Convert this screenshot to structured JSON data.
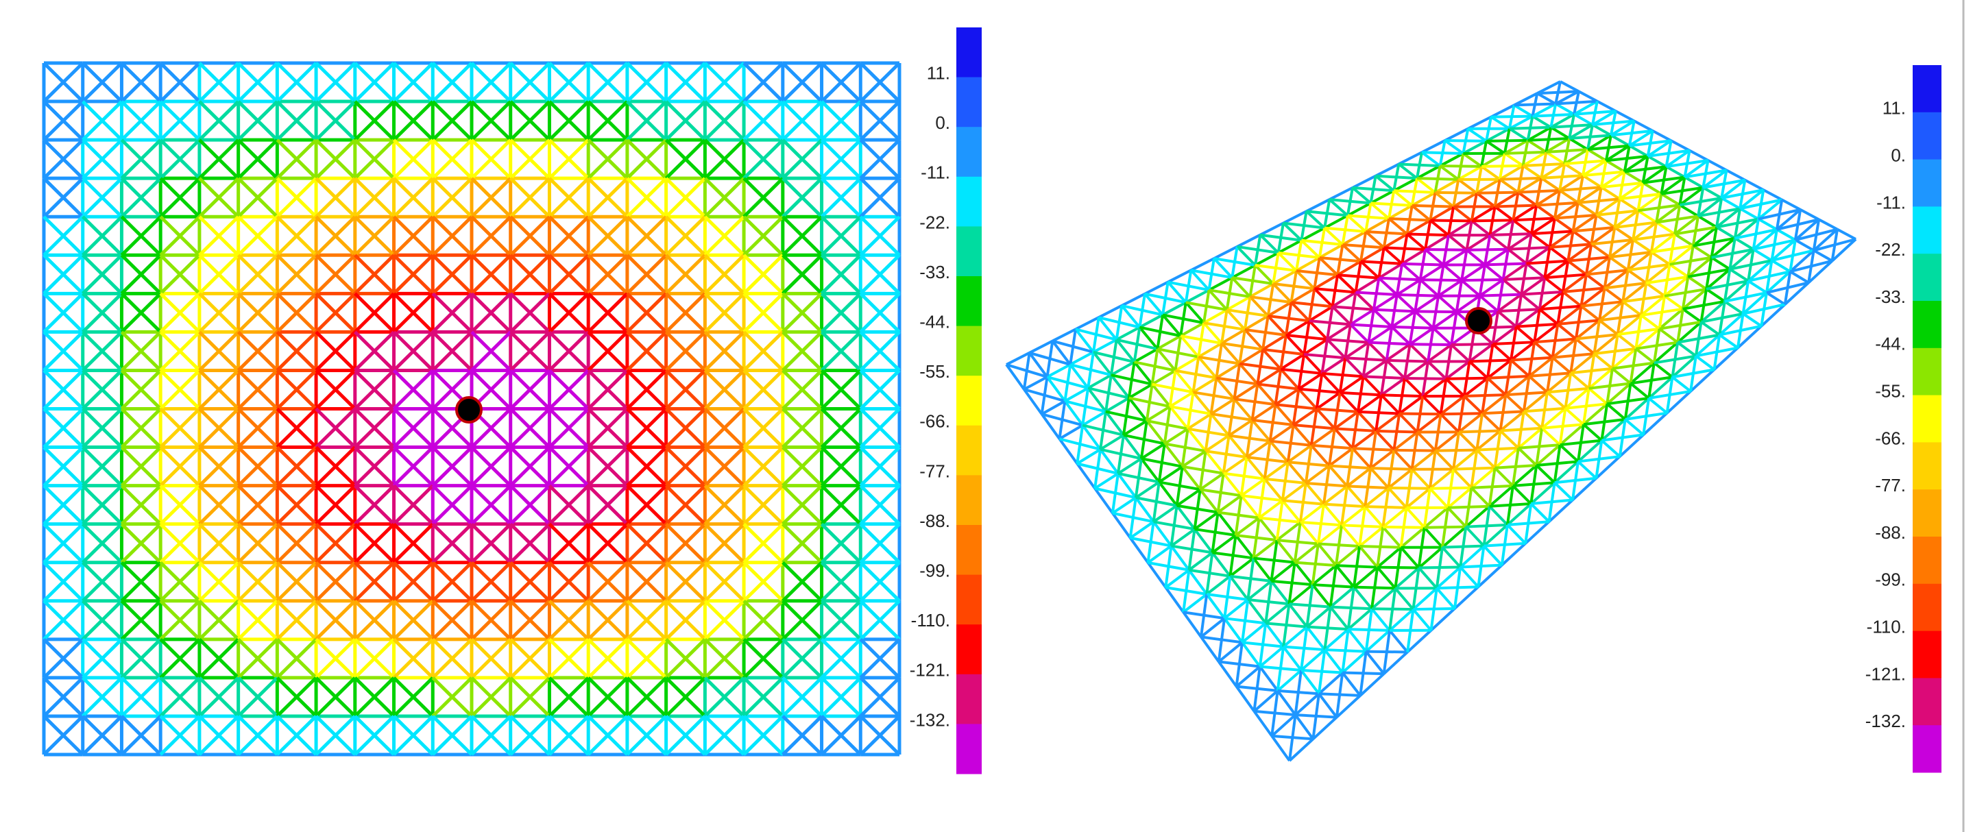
{
  "colorbar_colors": [
    "#1414f0",
    "#1e5aff",
    "#1e96ff",
    "#00e6ff",
    "#00dca0",
    "#00d200",
    "#8ce600",
    "#ffff00",
    "#ffd200",
    "#ffaa00",
    "#ff7800",
    "#ff4600",
    "#ff0000",
    "#dc0a78",
    "#c800dc"
  ],
  "panels": [
    {
      "legend": {
        "labels": [
          "11.",
          "0.",
          "-11.",
          "-22.",
          "-33.",
          "-44.",
          "-55.",
          "-66.",
          "-77.",
          "-88.",
          "-99.",
          "-110.",
          "-121.",
          "-132."
        ]
      }
    },
    {
      "legend": {
        "labels": [
          "11.",
          "0.",
          "-11.",
          "-22.",
          "-33.",
          "-44.",
          "-55.",
          "-66.",
          "-77.",
          "-88.",
          "-99.",
          "-110.",
          "-121.",
          "-132."
        ]
      }
    }
  ]
}
